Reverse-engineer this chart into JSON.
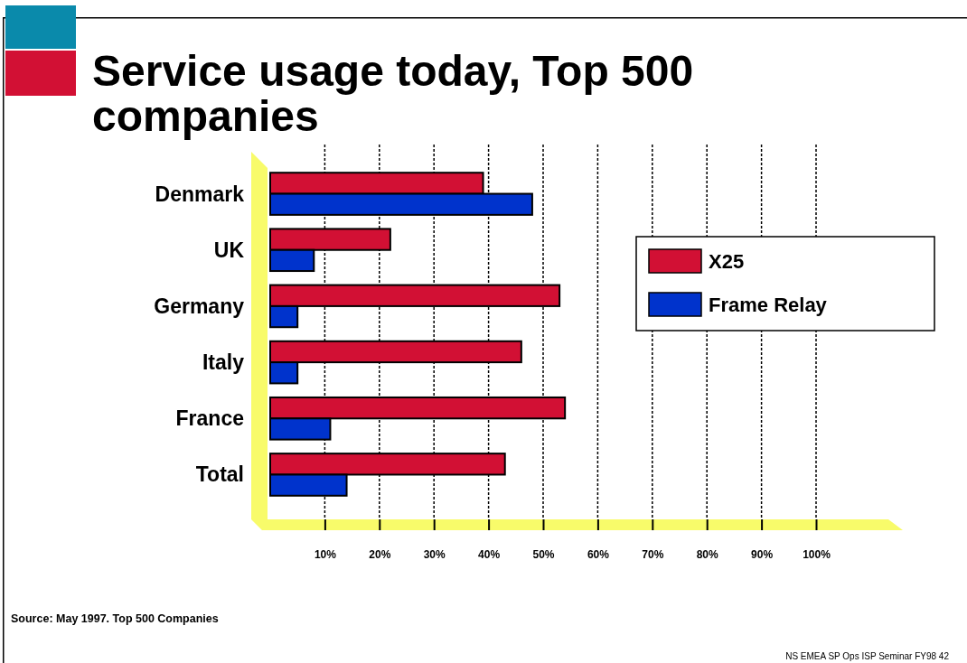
{
  "chart_data": {
    "type": "bar",
    "orientation": "horizontal",
    "title": "Service usage today, Top 500 companies",
    "categories": [
      "Denmark",
      "UK",
      "Germany",
      "Italy",
      "France",
      "Total"
    ],
    "series": [
      {
        "name": "X25",
        "color": "#d21034",
        "values": [
          39,
          22,
          53,
          46,
          54,
          43
        ]
      },
      {
        "name": "Frame Relay",
        "color": "#0033cc",
        "values": [
          48,
          8,
          5,
          5,
          11,
          14
        ]
      }
    ],
    "xlim": [
      0,
      100
    ],
    "xticks": [
      {
        "value": 10,
        "label": "10%"
      },
      {
        "value": 20,
        "label": "20%"
      },
      {
        "value": 30,
        "label": "30%"
      },
      {
        "value": 40,
        "label": "40%"
      },
      {
        "value": 50,
        "label": "50%"
      },
      {
        "value": 60,
        "label": "60%"
      },
      {
        "value": 70,
        "label": "70%"
      },
      {
        "value": 80,
        "label": "80%"
      },
      {
        "value": 90,
        "label": "90%"
      },
      {
        "value": 100,
        "label": "100%"
      }
    ],
    "grid": "x",
    "legend": "right",
    "annotations": [
      "Source: May 1997. Top 500 Companies",
      "NS EMEA SP Ops ISP Seminar FY98 42"
    ]
  }
}
